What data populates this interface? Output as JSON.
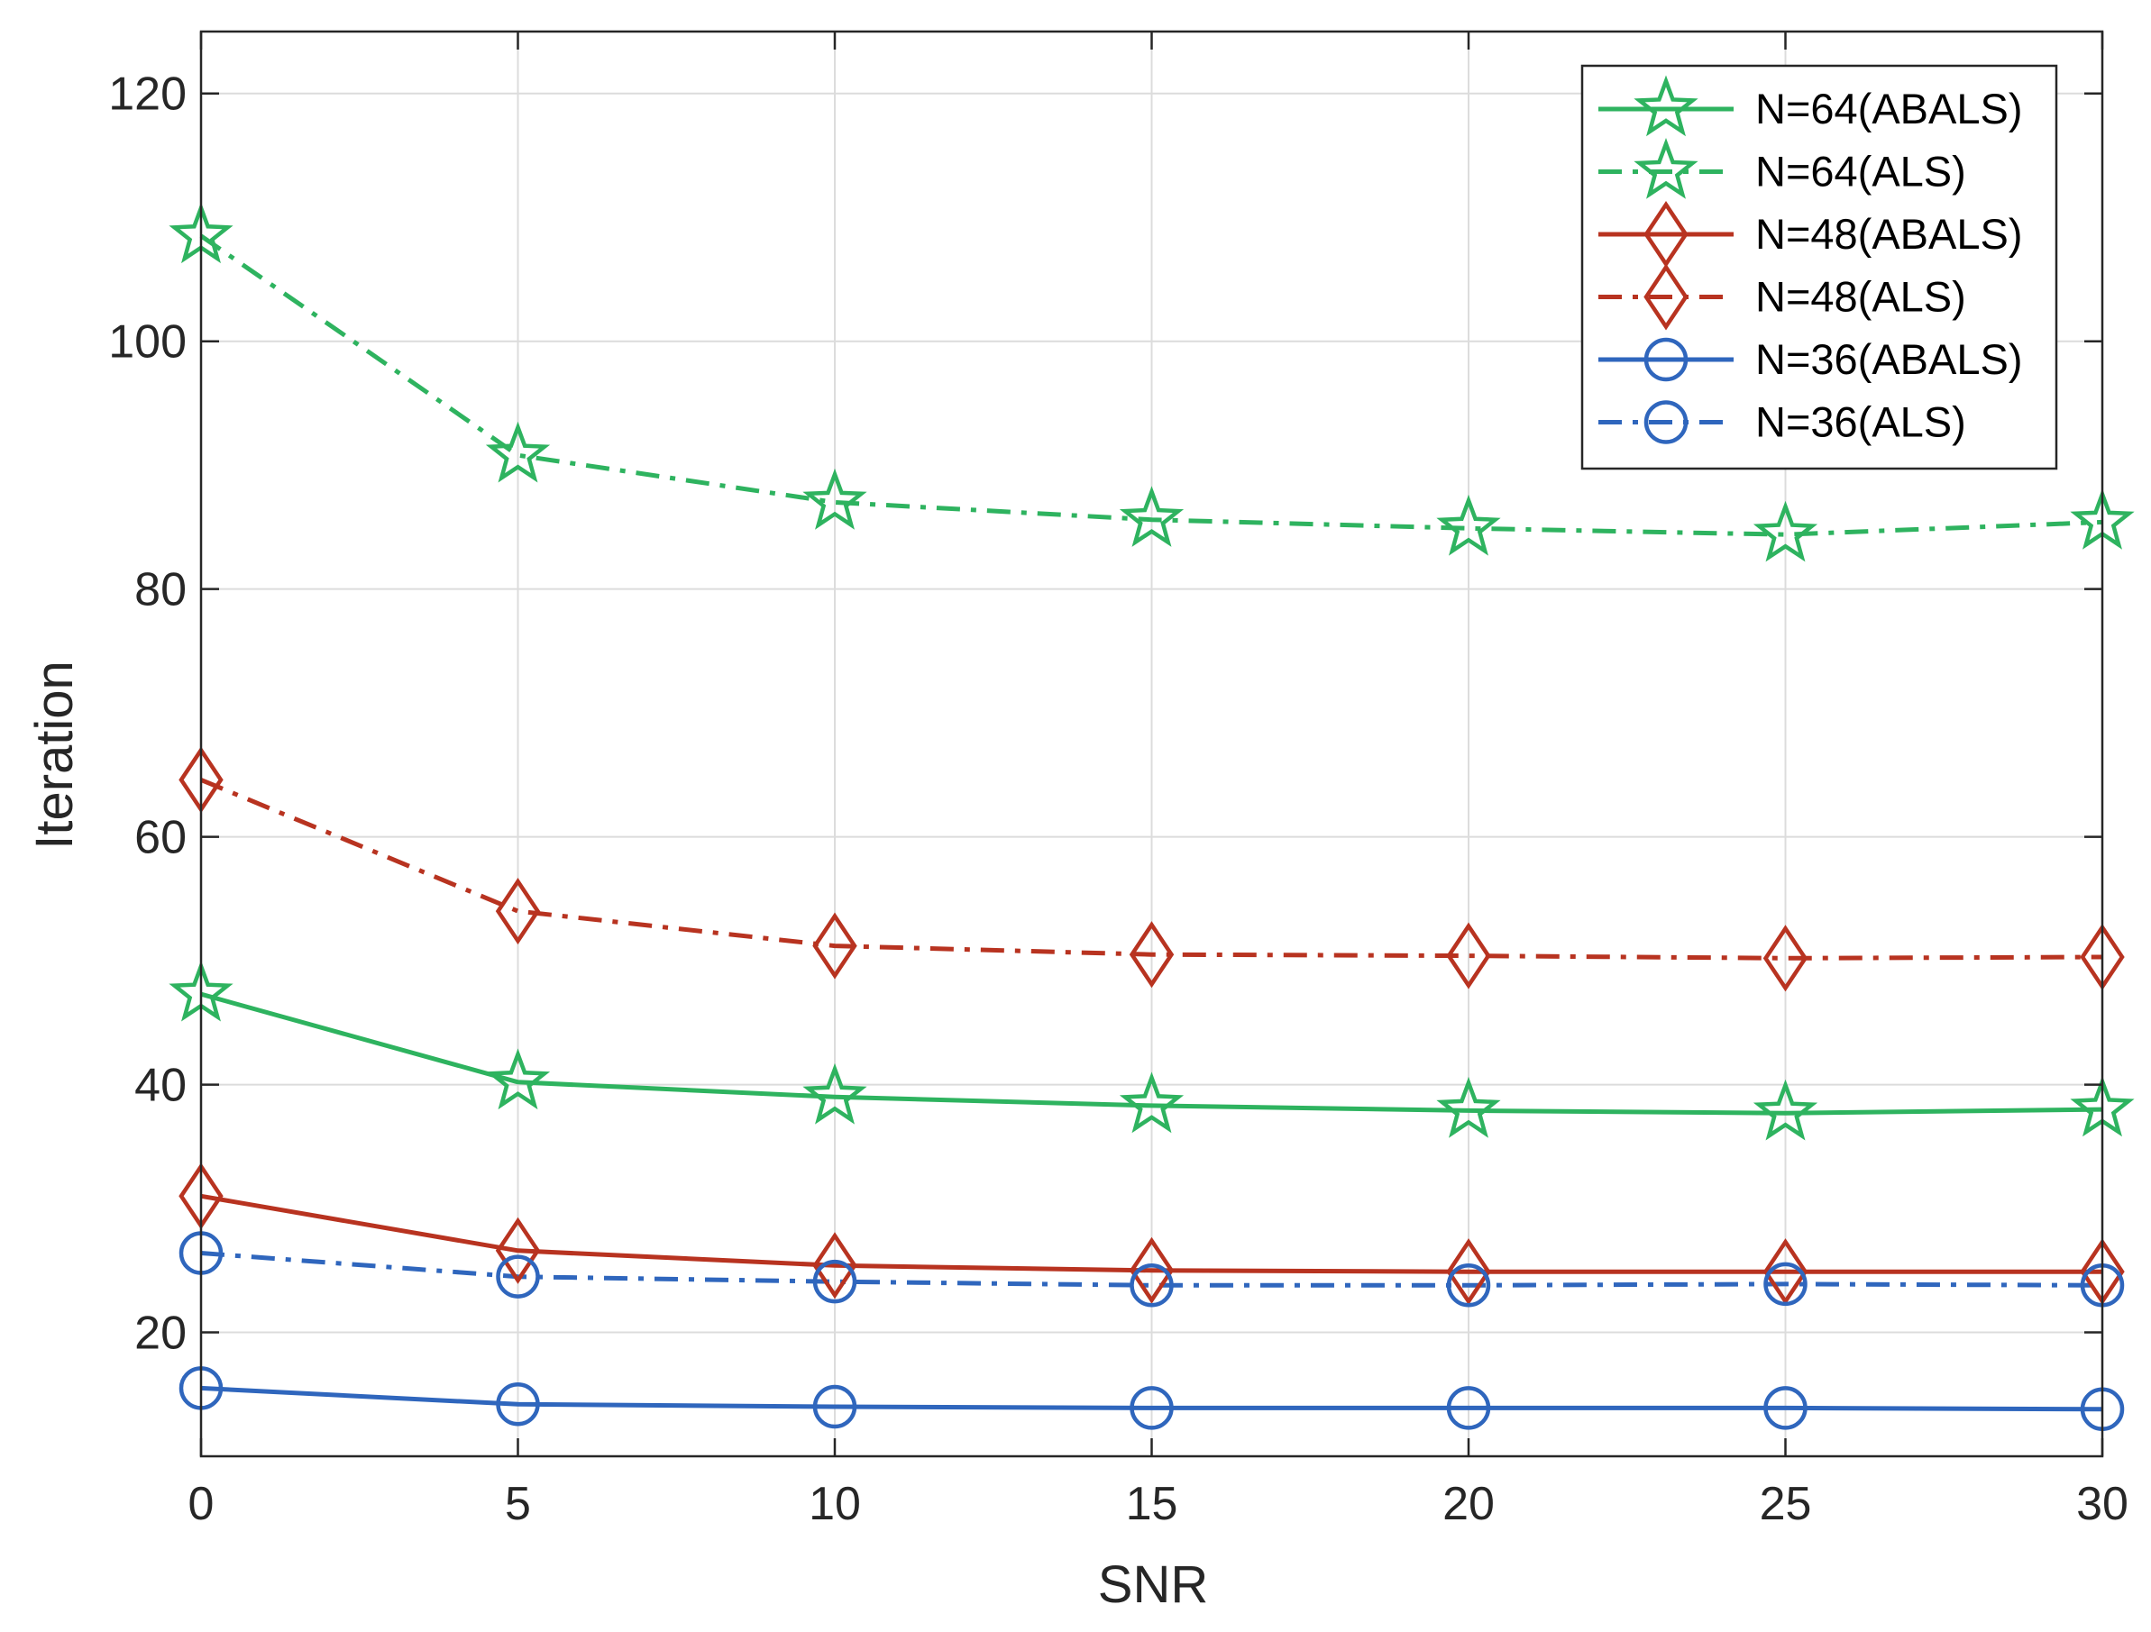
{
  "chart_data": {
    "type": "line",
    "title": "",
    "xlabel": "SNR",
    "ylabel": "Iteration",
    "xlim": [
      0,
      30
    ],
    "ylim": [
      10,
      125
    ],
    "xticks": [
      0,
      5,
      10,
      15,
      20,
      25,
      30
    ],
    "yticks": [
      20,
      40,
      60,
      80,
      100,
      120
    ],
    "grid": true,
    "legend_location": "top-right",
    "x": [
      0,
      5,
      10,
      15,
      20,
      25,
      30
    ],
    "series": [
      {
        "name": "N=64(ABALS)",
        "color": "#2EB35F",
        "dash": "solid",
        "marker": "star",
        "values": [
          47.3,
          40.2,
          39.0,
          38.3,
          37.9,
          37.7,
          38.0
        ]
      },
      {
        "name": "N=64(ALS)",
        "color": "#2EB35F",
        "dash": "dashdot",
        "marker": "star",
        "values": [
          108.5,
          90.8,
          87.0,
          85.6,
          84.9,
          84.4,
          85.4
        ]
      },
      {
        "name": "N=48(ABALS)",
        "color": "#B83320",
        "dash": "solid",
        "marker": "diamond",
        "values": [
          31.0,
          26.6,
          25.4,
          25.0,
          24.9,
          24.9,
          24.9
        ]
      },
      {
        "name": "N=48(ALS)",
        "color": "#B83320",
        "dash": "dashdot",
        "marker": "diamond",
        "values": [
          64.6,
          54.0,
          51.2,
          50.5,
          50.4,
          50.2,
          50.3
        ]
      },
      {
        "name": "N=36(ABALS)",
        "color": "#2F66BD",
        "dash": "solid",
        "marker": "circle",
        "values": [
          15.5,
          14.2,
          14.0,
          13.9,
          13.9,
          13.9,
          13.8
        ]
      },
      {
        "name": "N=36(ALS)",
        "color": "#2F66BD",
        "dash": "dashdot",
        "marker": "circle",
        "values": [
          26.4,
          24.5,
          24.1,
          23.8,
          23.8,
          23.9,
          23.8
        ]
      }
    ]
  }
}
